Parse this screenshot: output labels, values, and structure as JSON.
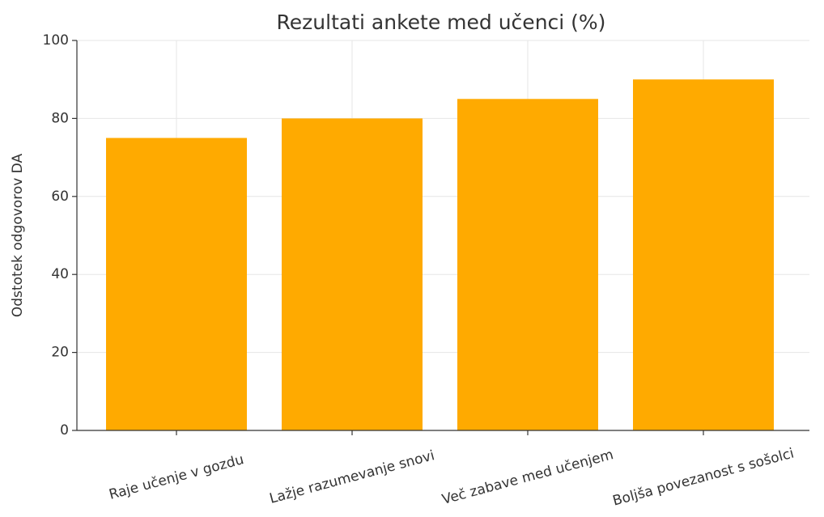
{
  "chart_data": {
    "type": "bar",
    "title": "Rezultati ankete med učenci (%)",
    "y_label": "Odstotek odgovorov DA",
    "categories": [
      "Raje učenje v gozdu",
      "Lažje razumevanje snovi",
      "Več zabave med učenjem",
      "Boljša povezanost s sošolci"
    ],
    "values": [
      75,
      80,
      85,
      90
    ],
    "color": "#ffaa00",
    "ylim": [
      0,
      100
    ],
    "yticks": [
      0,
      20,
      40,
      60,
      80,
      100
    ],
    "grid": true
  }
}
